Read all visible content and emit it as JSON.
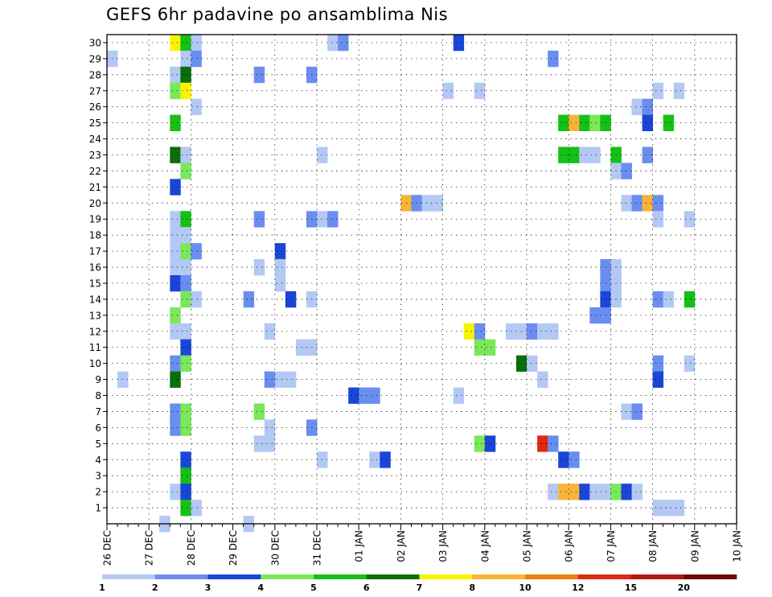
{
  "chart_data": {
    "type": "heatmap",
    "title": "GEFS 6hr padavine po ansamblima Nis",
    "xlabel": "",
    "ylabel": "",
    "x_tick_labels": [
      "26 DEC",
      "27 DEC",
      "28 DEC",
      "29 DEC",
      "30 DEC",
      "31 DEC",
      "01 JAN",
      "02 JAN",
      "03 JAN",
      "04 JAN",
      "05 JAN",
      "06 JAN",
      "07 JAN",
      "08 JAN",
      "09 JAN",
      "10 JAN"
    ],
    "y_tick_labels": [
      "1",
      "2",
      "3",
      "4",
      "5",
      "6",
      "7",
      "8",
      "9",
      "10",
      "11",
      "12",
      "13",
      "14",
      "15",
      "16",
      "17",
      "18",
      "19",
      "20",
      "21",
      "22",
      "23",
      "24",
      "25",
      "26",
      "27",
      "28",
      "29",
      "30"
    ],
    "time_step_hours": 6,
    "grid": "dotted",
    "colorbar": {
      "position": "bottom",
      "labels": [
        "1",
        "2",
        "3",
        "4",
        "5",
        "6",
        "7",
        "8",
        "10",
        "12",
        "15",
        "20"
      ],
      "colors": [
        "#b4c8f4",
        "#6a8ef0",
        "#1a46d8",
        "#7ae85a",
        "#16c016",
        "#0a6e0a",
        "#f8f400",
        "#f8b43a",
        "#f07f10",
        "#dd2a10",
        "#b01a10",
        "#6e0606"
      ]
    },
    "cells": [
      [
        30,
        "12-27T12",
        6
      ],
      [
        30,
        "12-27T18",
        4
      ],
      [
        30,
        "12-28T00",
        0
      ],
      [
        30,
        "12-31T06",
        0
      ],
      [
        30,
        "12-31T12",
        1
      ],
      [
        30,
        "01-03T06",
        2
      ],
      [
        29,
        "12-26T00",
        0
      ],
      [
        29,
        "12-27T18",
        0
      ],
      [
        29,
        "12-28T00",
        1
      ],
      [
        29,
        "01-05T12",
        1
      ],
      [
        28,
        "12-27T12",
        0
      ],
      [
        28,
        "12-27T18",
        5
      ],
      [
        28,
        "12-29T12",
        1
      ],
      [
        28,
        "12-30T18",
        1
      ],
      [
        27,
        "12-27T12",
        3
      ],
      [
        27,
        "12-27T18",
        6
      ],
      [
        27,
        "01-03T00",
        0
      ],
      [
        27,
        "01-03T18",
        0
      ],
      [
        27,
        "01-08T00",
        0
      ],
      [
        27,
        "01-08T12",
        0
      ],
      [
        26,
        "12-28T00",
        0
      ],
      [
        26,
        "01-07T12",
        0
      ],
      [
        26,
        "01-07T18",
        1
      ],
      [
        25,
        "12-27T12",
        4
      ],
      [
        25,
        "01-05T18",
        4
      ],
      [
        25,
        "01-06T00",
        7
      ],
      [
        25,
        "01-06T06",
        4
      ],
      [
        25,
        "01-06T12",
        3
      ],
      [
        25,
        "01-06T18",
        4
      ],
      [
        25,
        "01-07T18",
        2
      ],
      [
        25,
        "01-08T06",
        4
      ],
      [
        23,
        "12-27T12",
        5
      ],
      [
        23,
        "12-27T18",
        0
      ],
      [
        23,
        "12-31T00",
        0
      ],
      [
        23,
        "01-05T18",
        4
      ],
      [
        23,
        "01-06T00",
        4
      ],
      [
        23,
        "01-06T06",
        0
      ],
      [
        23,
        "01-06T12",
        0
      ],
      [
        23,
        "01-07T00",
        4
      ],
      [
        23,
        "01-07T18",
        1
      ],
      [
        22,
        "12-27T18",
        3
      ],
      [
        22,
        "01-07T00",
        0
      ],
      [
        22,
        "01-07T06",
        1
      ],
      [
        21,
        "12-27T12",
        2
      ],
      [
        20,
        "01-02T00",
        7
      ],
      [
        20,
        "01-02T06",
        1
      ],
      [
        20,
        "01-02T12",
        0
      ],
      [
        20,
        "01-02T18",
        0
      ],
      [
        20,
        "01-07T06",
        0
      ],
      [
        20,
        "01-07T12",
        1
      ],
      [
        20,
        "01-07T18",
        7
      ],
      [
        20,
        "01-08T00",
        1
      ],
      [
        19,
        "12-27T12",
        0
      ],
      [
        19,
        "12-27T18",
        4
      ],
      [
        19,
        "12-29T12",
        1
      ],
      [
        19,
        "12-30T18",
        1
      ],
      [
        19,
        "12-31T00",
        0
      ],
      [
        19,
        "12-31T06",
        1
      ],
      [
        19,
        "01-08T00",
        0
      ],
      [
        19,
        "01-08T18",
        0
      ],
      [
        18,
        "12-27T12",
        0
      ],
      [
        18,
        "12-27T18",
        0
      ],
      [
        17,
        "12-27T12",
        0
      ],
      [
        17,
        "12-27T18",
        3
      ],
      [
        17,
        "12-28T00",
        1
      ],
      [
        17,
        "12-30T00",
        2
      ],
      [
        16,
        "12-27T12",
        0
      ],
      [
        16,
        "12-27T18",
        0
      ],
      [
        16,
        "12-29T12",
        0
      ],
      [
        16,
        "12-30T00",
        0
      ],
      [
        16,
        "01-06T18",
        1
      ],
      [
        16,
        "01-07T00",
        0
      ],
      [
        15,
        "12-27T12",
        2
      ],
      [
        15,
        "12-27T18",
        1
      ],
      [
        15,
        "12-30T00",
        0
      ],
      [
        15,
        "01-06T18",
        1
      ],
      [
        15,
        "01-07T00",
        0
      ],
      [
        14,
        "12-27T18",
        3
      ],
      [
        14,
        "12-28T00",
        0
      ],
      [
        14,
        "12-29T06",
        1
      ],
      [
        14,
        "12-30T06",
        2
      ],
      [
        14,
        "12-30T18",
        0
      ],
      [
        14,
        "01-06T18",
        2
      ],
      [
        14,
        "01-07T00",
        0
      ],
      [
        14,
        "01-08T00",
        1
      ],
      [
        14,
        "01-08T06",
        0
      ],
      [
        14,
        "01-08T18",
        4
      ],
      [
        13,
        "12-27T12",
        3
      ],
      [
        13,
        "01-06T12",
        1
      ],
      [
        13,
        "01-06T18",
        1
      ],
      [
        12,
        "12-27T12",
        0
      ],
      [
        12,
        "12-27T18",
        0
      ],
      [
        12,
        "12-29T18",
        0
      ],
      [
        12,
        "01-03T12",
        6
      ],
      [
        12,
        "01-03T18",
        1
      ],
      [
        12,
        "01-04T12",
        0
      ],
      [
        12,
        "01-04T18",
        0
      ],
      [
        12,
        "01-05T00",
        1
      ],
      [
        12,
        "01-05T06",
        0
      ],
      [
        12,
        "01-05T12",
        0
      ],
      [
        11,
        "12-27T18",
        2
      ],
      [
        11,
        "12-30T12",
        0
      ],
      [
        11,
        "12-30T18",
        0
      ],
      [
        11,
        "01-03T18",
        3
      ],
      [
        11,
        "01-04T00",
        3
      ],
      [
        10,
        "12-27T12",
        1
      ],
      [
        10,
        "12-27T18",
        3
      ],
      [
        10,
        "01-04T18",
        5
      ],
      [
        10,
        "01-05T00",
        0
      ],
      [
        10,
        "01-08T00",
        1
      ],
      [
        10,
        "01-08T18",
        0
      ],
      [
        9,
        "12-26T06",
        0
      ],
      [
        9,
        "12-27T12",
        5
      ],
      [
        9,
        "12-29T18",
        1
      ],
      [
        9,
        "12-30T00",
        0
      ],
      [
        9,
        "12-30T06",
        0
      ],
      [
        9,
        "01-05T06",
        0
      ],
      [
        9,
        "01-08T00",
        2
      ],
      [
        8,
        "12-31T18",
        2
      ],
      [
        8,
        "01-01T00",
        1
      ],
      [
        8,
        "01-01T06",
        1
      ],
      [
        8,
        "01-03T06",
        0
      ],
      [
        7,
        "12-27T12",
        1
      ],
      [
        7,
        "12-27T18",
        3
      ],
      [
        7,
        "12-29T12",
        3
      ],
      [
        7,
        "01-07T06",
        0
      ],
      [
        7,
        "01-07T12",
        1
      ],
      [
        6,
        "12-27T12",
        1
      ],
      [
        6,
        "12-27T18",
        3
      ],
      [
        6,
        "12-29T18",
        0
      ],
      [
        6,
        "12-30T18",
        1
      ],
      [
        5,
        "12-29T12",
        0
      ],
      [
        5,
        "12-29T18",
        0
      ],
      [
        5,
        "01-03T18",
        3
      ],
      [
        5,
        "01-04T00",
        2
      ],
      [
        5,
        "01-05T06",
        9
      ],
      [
        5,
        "01-05T12",
        1
      ],
      [
        4,
        "12-27T18",
        2
      ],
      [
        4,
        "12-31T00",
        0
      ],
      [
        4,
        "01-01T06",
        0
      ],
      [
        4,
        "01-01T12",
        2
      ],
      [
        4,
        "01-05T18",
        2
      ],
      [
        4,
        "01-06T00",
        1
      ],
      [
        3,
        "12-27T18",
        4
      ],
      [
        2,
        "12-27T12",
        0
      ],
      [
        2,
        "12-27T18",
        2
      ],
      [
        2,
        "01-05T12",
        0
      ],
      [
        2,
        "01-05T18",
        7
      ],
      [
        2,
        "01-06T00",
        7
      ],
      [
        2,
        "01-06T06",
        2
      ],
      [
        2,
        "01-06T12",
        0
      ],
      [
        2,
        "01-06T18",
        0
      ],
      [
        2,
        "01-07T00",
        3
      ],
      [
        2,
        "01-07T06",
        2
      ],
      [
        2,
        "01-07T12",
        0
      ],
      [
        1,
        "12-27T18",
        4
      ],
      [
        1,
        "12-28T00",
        0
      ],
      [
        1,
        "01-08T00",
        0
      ],
      [
        1,
        "01-08T06",
        0
      ],
      [
        1,
        "01-08T12",
        0
      ],
      [
        0,
        "12-27T06",
        0
      ],
      [
        0,
        "12-29T06",
        0
      ]
    ]
  }
}
